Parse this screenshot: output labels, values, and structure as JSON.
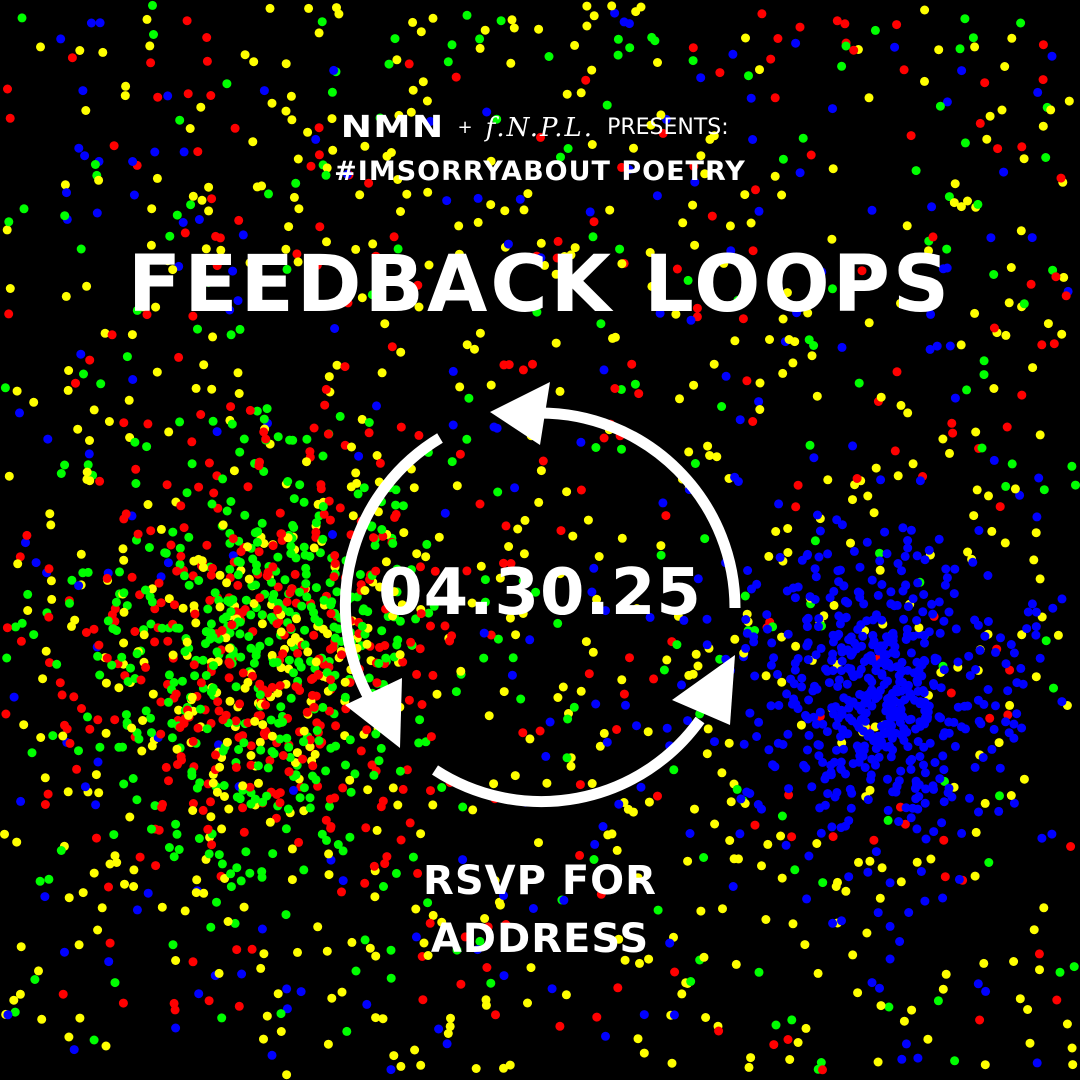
{
  "header": {
    "logo_nmn": "NMN",
    "plus": "+",
    "logo_fnpl": "f.N.P.L.",
    "presents": "PRESENTS:",
    "hashtag": "#IMSORRYABOUT POETRY"
  },
  "title": "FEEDBACK LOOPS",
  "date": "04.30.25",
  "rsvp": {
    "line1": "RSVP FOR",
    "line2": "ADDRESS"
  },
  "colors": {
    "background": "#000000",
    "text": "#ffffff",
    "dot_red": "#ff0000",
    "dot_green": "#00ff00",
    "dot_blue": "#0000ff",
    "dot_yellow": "#ffff00"
  },
  "icons": {
    "loop": "cycle-arrows-icon"
  }
}
